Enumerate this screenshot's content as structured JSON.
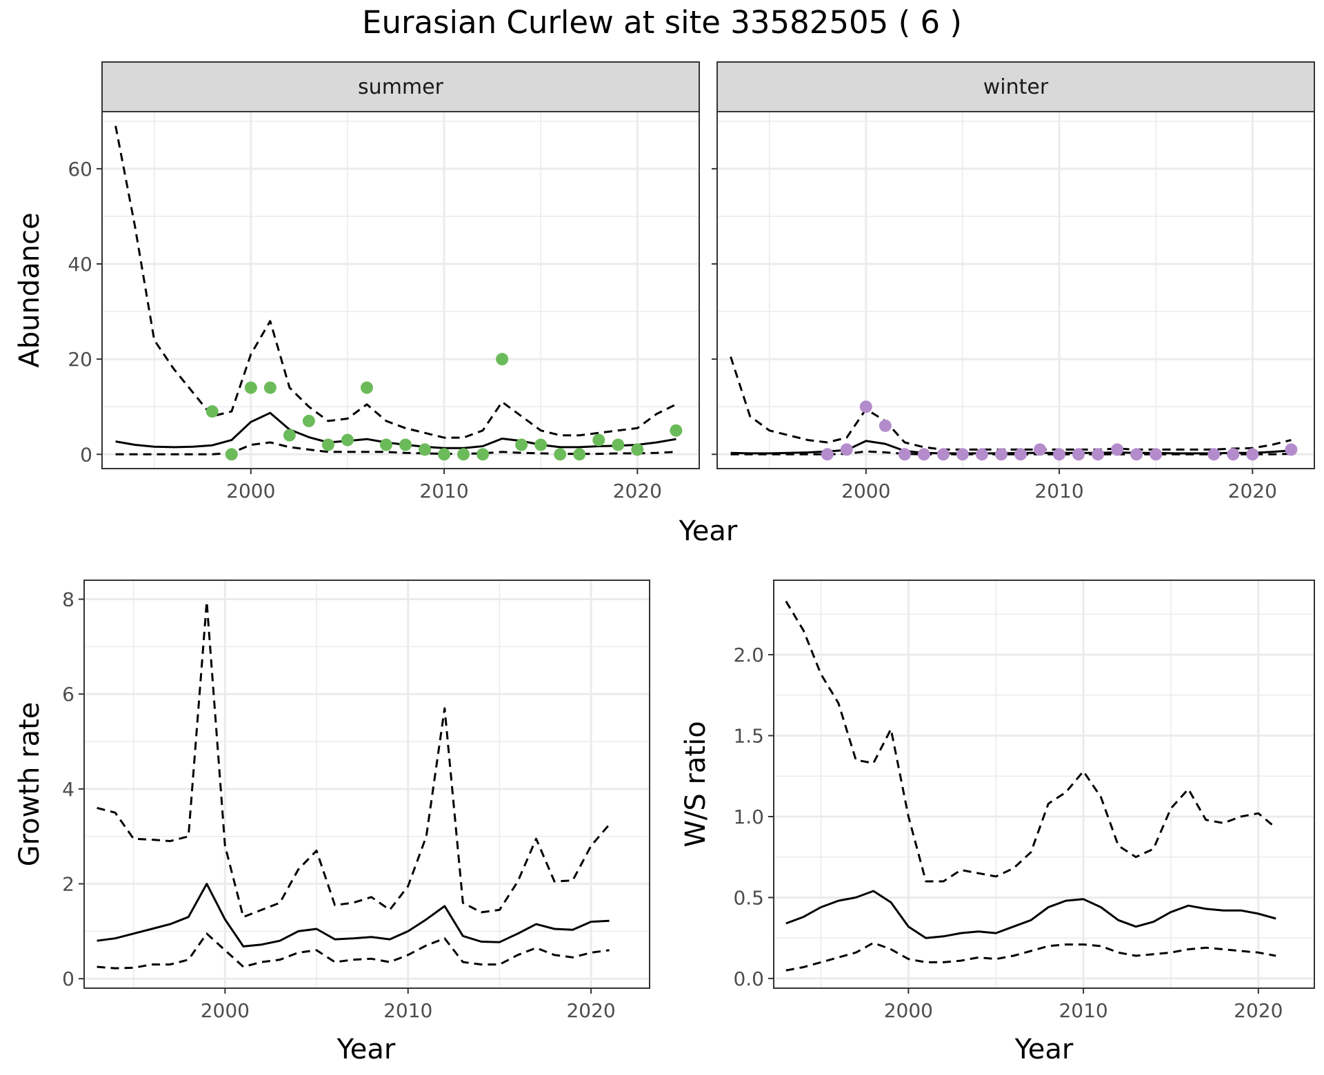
{
  "title": "Eurasian Curlew at site 33582505 ( 6 )",
  "colors": {
    "summer_points": "#6cbb5a",
    "winter_points": "#b48ccc",
    "line": "#000000",
    "panel_bg": "#ffffff",
    "strip_bg": "#d9d9d9",
    "grid": "#ebebeb",
    "border": "#333333"
  },
  "chart_data": [
    {
      "type": "line",
      "facet": "summer",
      "strip_label": "summer",
      "xlabel": "Year",
      "ylabel": "Abundance",
      "xlim": [
        1992.3,
        2023.2
      ],
      "ylim": [
        -3,
        72
      ],
      "x_ticks": [
        2000,
        2010,
        2020
      ],
      "y_ticks": [
        0,
        20,
        40,
        60
      ],
      "grid": true,
      "x": [
        1993,
        1994,
        1995,
        1996,
        1997,
        1998,
        1999,
        2000,
        2001,
        2002,
        2003,
        2004,
        2005,
        2006,
        2007,
        2008,
        2009,
        2010,
        2011,
        2012,
        2013,
        2014,
        2015,
        2016,
        2017,
        2018,
        2019,
        2020,
        2021,
        2022
      ],
      "series": [
        {
          "role": "lower",
          "style": "dashed",
          "values": [
            0,
            0,
            0,
            0,
            0,
            0,
            0.3,
            2,
            2.5,
            1.5,
            1,
            0.5,
            0.5,
            0.5,
            0.5,
            0.3,
            0.2,
            0.1,
            0.1,
            0.2,
            0.5,
            0.3,
            0.2,
            0.1,
            0.1,
            0.1,
            0.2,
            0.2,
            0.3,
            0.5
          ]
        },
        {
          "role": "estimate",
          "style": "solid",
          "values": [
            2.7,
            2,
            1.6,
            1.5,
            1.6,
            1.9,
            3,
            6.8,
            8.7,
            5.2,
            3.6,
            2.5,
            2.8,
            3.2,
            2.5,
            2,
            1.6,
            1.3,
            1.3,
            1.7,
            3.3,
            2.8,
            2,
            1.5,
            1.5,
            1.7,
            1.8,
            2,
            2.5,
            3.2
          ]
        },
        {
          "role": "upper",
          "style": "dashed",
          "values": [
            69,
            48,
            24,
            18,
            13,
            8,
            9,
            21,
            28,
            14,
            10,
            7,
            7.5,
            10.5,
            7,
            5.5,
            4.5,
            3.5,
            3.5,
            5,
            11,
            8,
            5,
            4,
            4,
            4.5,
            5,
            5.5,
            8.5,
            10.5
          ]
        }
      ],
      "points": {
        "x": [
          1998,
          1999,
          2000,
          2001,
          2002,
          2003,
          2004,
          2005,
          2006,
          2007,
          2008,
          2009,
          2010,
          2011,
          2012,
          2013,
          2014,
          2015,
          2016,
          2017,
          2018,
          2019,
          2020,
          2022
        ],
        "y": [
          9,
          0,
          14,
          14,
          4,
          7,
          2,
          3,
          14,
          2,
          2,
          1,
          0,
          0,
          0,
          20,
          2,
          2,
          0,
          0,
          3,
          2,
          1,
          5
        ]
      }
    },
    {
      "type": "line",
      "facet": "winter",
      "strip_label": "winter",
      "xlabel": "Year",
      "ylabel": "Abundance",
      "xlim": [
        1992.3,
        2023.2
      ],
      "ylim": [
        -3,
        72
      ],
      "x_ticks": [
        2000,
        2010,
        2020
      ],
      "y_ticks": [
        0,
        20,
        40,
        60
      ],
      "grid": true,
      "x": [
        1993,
        1994,
        1995,
        1996,
        1997,
        1998,
        1999,
        2000,
        2001,
        2002,
        2003,
        2004,
        2005,
        2006,
        2007,
        2008,
        2009,
        2010,
        2011,
        2012,
        2013,
        2014,
        2015,
        2016,
        2017,
        2018,
        2019,
        2020,
        2021,
        2022
      ],
      "series": [
        {
          "role": "lower",
          "style": "dashed",
          "values": [
            0,
            0,
            0,
            0,
            0,
            0,
            0.1,
            0.6,
            0.4,
            0.1,
            0,
            0,
            0,
            0,
            0,
            0,
            0,
            0,
            0,
            0,
            0,
            0,
            0,
            0,
            0,
            0,
            0,
            0,
            0,
            0.1
          ]
        },
        {
          "role": "estimate",
          "style": "solid",
          "values": [
            0.3,
            0.2,
            0.2,
            0.3,
            0.4,
            0.6,
            0.9,
            2.8,
            2.2,
            0.7,
            0.3,
            0.2,
            0.2,
            0.2,
            0.2,
            0.3,
            0.3,
            0.3,
            0.3,
            0.3,
            0.4,
            0.3,
            0.3,
            0.2,
            0.2,
            0.2,
            0.3,
            0.3,
            0.5,
            0.8
          ]
        },
        {
          "role": "upper",
          "style": "dashed",
          "values": [
            20.5,
            8,
            5,
            4,
            3,
            2.5,
            3.5,
            9.5,
            7,
            2.5,
            1.5,
            1,
            1,
            1,
            1,
            1,
            1,
            1,
            1,
            1,
            1.2,
            1,
            1,
            1,
            1,
            1,
            1.2,
            1.3,
            2,
            3
          ]
        }
      ],
      "points": {
        "x": [
          1998,
          1999,
          2000,
          2001,
          2002,
          2003,
          2004,
          2005,
          2006,
          2007,
          2008,
          2009,
          2010,
          2011,
          2012,
          2013,
          2014,
          2015,
          2018,
          2019,
          2020,
          2022
        ],
        "y": [
          0,
          1,
          10,
          6,
          0,
          0,
          0,
          0,
          0,
          0,
          0,
          1,
          0,
          0,
          0,
          1,
          0,
          0,
          0,
          0,
          0,
          1
        ]
      }
    },
    {
      "type": "line",
      "facet": "growth",
      "strip_label": "",
      "xlabel": "Year",
      "ylabel": "Growth rate",
      "xlim": [
        1992.3,
        2023.2
      ],
      "ylim": [
        -0.2,
        8.4
      ],
      "x_ticks": [
        2000,
        2010,
        2020
      ],
      "y_ticks": [
        0,
        2,
        4,
        6,
        8
      ],
      "grid": true,
      "x": [
        1993,
        1994,
        1995,
        1996,
        1997,
        1998,
        1999,
        2000,
        2001,
        2002,
        2003,
        2004,
        2005,
        2006,
        2007,
        2008,
        2009,
        2010,
        2011,
        2012,
        2013,
        2014,
        2015,
        2016,
        2017,
        2018,
        2019,
        2020,
        2021
      ],
      "series": [
        {
          "role": "lower",
          "style": "dashed",
          "values": [
            0.25,
            0.22,
            0.23,
            0.3,
            0.3,
            0.4,
            0.95,
            0.6,
            0.25,
            0.35,
            0.4,
            0.55,
            0.6,
            0.35,
            0.4,
            0.42,
            0.35,
            0.5,
            0.7,
            0.85,
            0.35,
            0.3,
            0.3,
            0.5,
            0.65,
            0.5,
            0.45,
            0.55,
            0.6
          ]
        },
        {
          "role": "estimate",
          "style": "solid",
          "values": [
            0.8,
            0.85,
            0.95,
            1.05,
            1.15,
            1.3,
            2.0,
            1.25,
            0.68,
            0.72,
            0.8,
            1.0,
            1.05,
            0.83,
            0.85,
            0.88,
            0.83,
            1.0,
            1.25,
            1.53,
            0.9,
            0.78,
            0.77,
            0.95,
            1.15,
            1.05,
            1.03,
            1.2,
            1.22
          ]
        },
        {
          "role": "upper",
          "style": "dashed",
          "values": [
            3.6,
            3.5,
            2.95,
            2.93,
            2.9,
            3.0,
            7.95,
            2.8,
            1.3,
            1.45,
            1.6,
            2.3,
            2.7,
            1.55,
            1.6,
            1.72,
            1.45,
            1.95,
            3.0,
            5.7,
            1.6,
            1.4,
            1.45,
            2.05,
            2.95,
            2.05,
            2.07,
            2.8,
            3.25
          ]
        }
      ]
    },
    {
      "type": "line",
      "facet": "ws_ratio",
      "strip_label": "",
      "xlabel": "Year",
      "ylabel": "W/S ratio",
      "xlim": [
        1992.3,
        2023.2
      ],
      "ylim": [
        -0.06,
        2.46
      ],
      "x_ticks": [
        2000,
        2010,
        2020
      ],
      "y_ticks": [
        "0.0",
        "0.5",
        "1.0",
        "1.5",
        "2.0"
      ],
      "grid": true,
      "x": [
        1993,
        1994,
        1995,
        1996,
        1997,
        1998,
        1999,
        2000,
        2001,
        2002,
        2003,
        2004,
        2005,
        2006,
        2007,
        2008,
        2009,
        2010,
        2011,
        2012,
        2013,
        2014,
        2015,
        2016,
        2017,
        2018,
        2019,
        2020,
        2021
      ],
      "series": [
        {
          "role": "lower",
          "style": "dashed",
          "values": [
            0.05,
            0.07,
            0.1,
            0.13,
            0.16,
            0.22,
            0.18,
            0.12,
            0.1,
            0.1,
            0.11,
            0.13,
            0.12,
            0.14,
            0.17,
            0.2,
            0.21,
            0.21,
            0.2,
            0.16,
            0.14,
            0.15,
            0.16,
            0.18,
            0.19,
            0.18,
            0.17,
            0.16,
            0.14
          ]
        },
        {
          "role": "estimate",
          "style": "solid",
          "values": [
            0.34,
            0.38,
            0.44,
            0.48,
            0.5,
            0.54,
            0.47,
            0.32,
            0.25,
            0.26,
            0.28,
            0.29,
            0.28,
            0.32,
            0.36,
            0.44,
            0.48,
            0.49,
            0.44,
            0.36,
            0.32,
            0.35,
            0.41,
            0.45,
            0.43,
            0.42,
            0.42,
            0.4,
            0.37
          ]
        },
        {
          "role": "upper",
          "style": "dashed",
          "values": [
            2.33,
            2.15,
            1.88,
            1.7,
            1.35,
            1.33,
            1.54,
            1.0,
            0.6,
            0.6,
            0.67,
            0.65,
            0.63,
            0.68,
            0.78,
            1.08,
            1.15,
            1.28,
            1.12,
            0.82,
            0.75,
            0.8,
            1.05,
            1.17,
            0.98,
            0.96,
            1.0,
            1.02,
            0.93
          ]
        }
      ]
    }
  ]
}
